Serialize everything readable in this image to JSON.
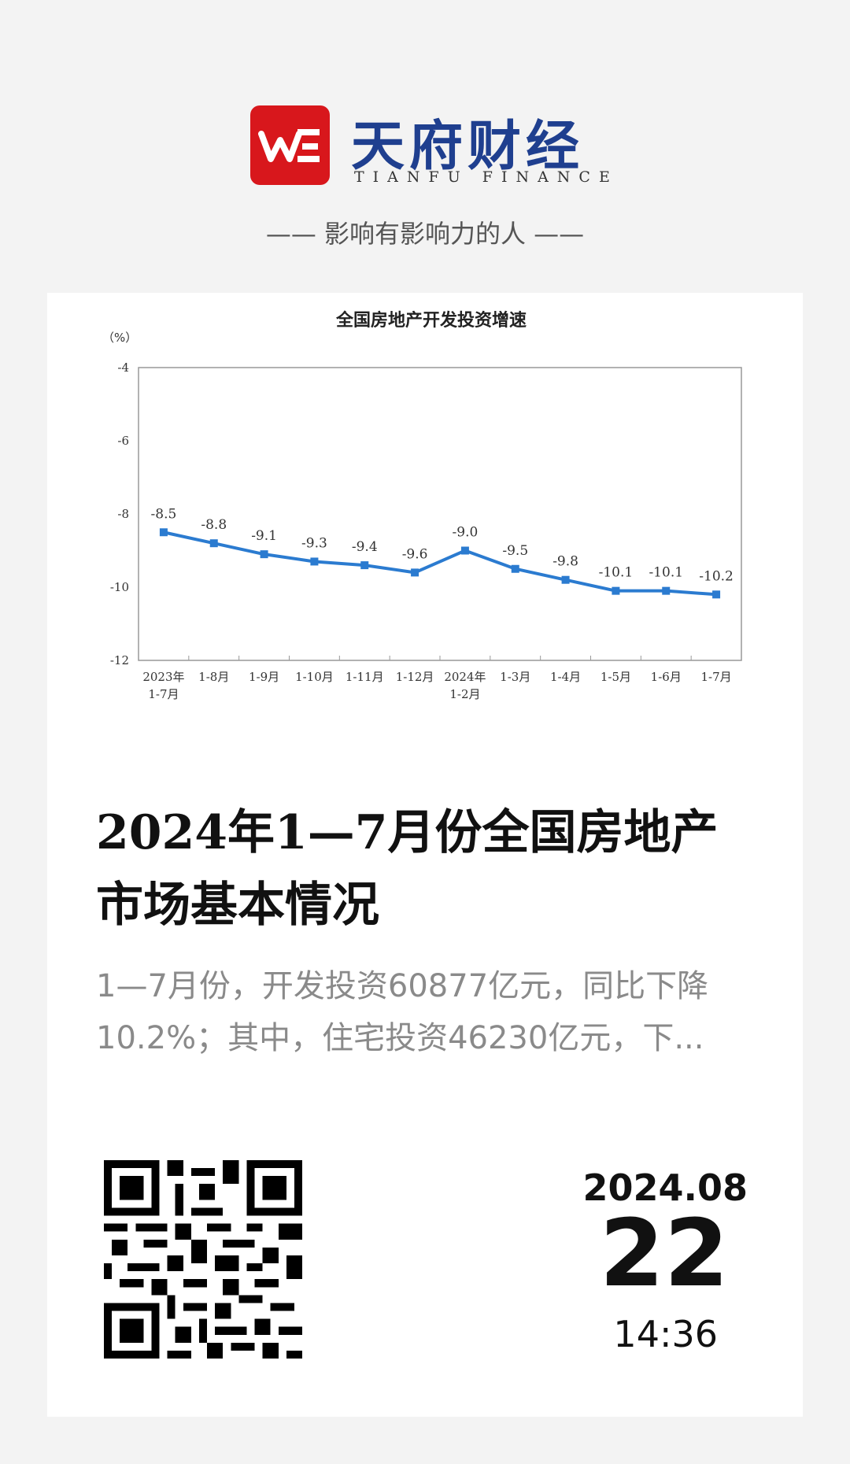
{
  "header": {
    "logo_mark": "WE",
    "brand_cn": "天府财经",
    "brand_en": "TIANFU FINANCE",
    "slogan": "—— 影响有影响力的人 ——"
  },
  "chart_data": {
    "type": "line",
    "title": "全国房地产开发投资增速",
    "ylabel": "（%）",
    "ylim": [
      -12,
      -4
    ],
    "yticks": [
      -4,
      -6,
      -8,
      -10,
      -12
    ],
    "categories": [
      "2023年\n1-7月",
      "1-8月",
      "1-9月",
      "1-10月",
      "1-11月",
      "1-12月",
      "2024年\n1-2月",
      "1-3月",
      "1-4月",
      "1-5月",
      "1-6月",
      "1-7月"
    ],
    "values": [
      -8.5,
      -8.8,
      -9.1,
      -9.3,
      -9.4,
      -9.6,
      -9.0,
      -9.5,
      -9.8,
      -10.1,
      -10.1,
      -10.2
    ],
    "data_labels": [
      "-8.5",
      "-8.8",
      "-9.1",
      "-9.3",
      "-9.4",
      "-9.6",
      "-9.0",
      "-9.5",
      "-9.8",
      "-10.1",
      "-10.1",
      "-10.2"
    ],
    "color": "#2b7bd0",
    "grid": false
  },
  "article": {
    "headline": "2024年1—7月份全国房地产市场基本情况",
    "summary": "1—7月份，开发投资60877亿元，同比下降10.2%；其中，住宅投资46230亿元，下..."
  },
  "date": {
    "year_month": "2024.08",
    "day": "22",
    "time": "14:36"
  }
}
